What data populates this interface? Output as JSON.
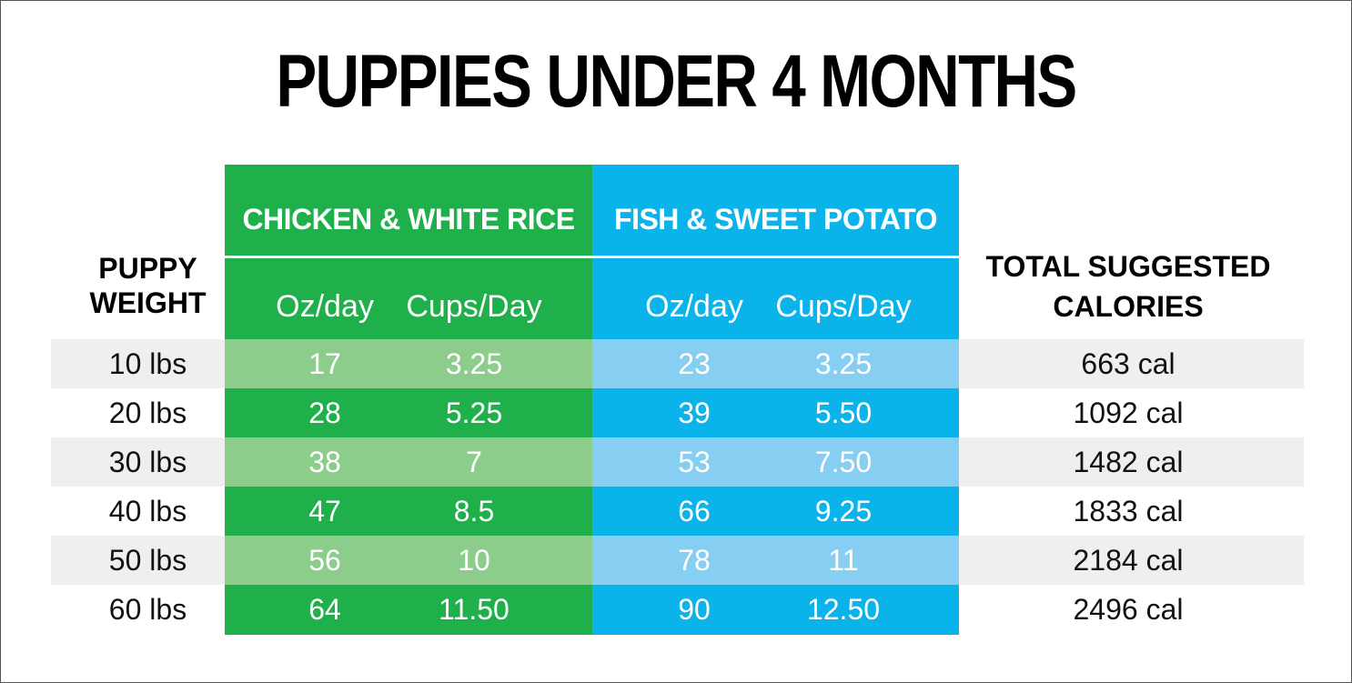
{
  "title": "PUPPIES UNDER 4 MONTHS",
  "headers": {
    "weight_line1": "PUPPY",
    "weight_line2": "WEIGHT",
    "recipe1": "CHICKEN & WHITE RICE",
    "recipe2": "FISH & SWEET POTATO",
    "calories_line1": "TOTAL SUGGESTED",
    "calories_line2": "CALORIES",
    "oz": "Oz/day",
    "cups": "Cups/Day"
  },
  "colors": {
    "green": "#1fb04b",
    "green_light": "#8dcd8b",
    "blue": "#0ab4ea",
    "blue_light": "#87cef3",
    "row_band": "#efefef"
  },
  "rows": [
    {
      "weight": "10 lbs",
      "c_oz": "17",
      "c_cups": "3.25",
      "f_oz": "23",
      "f_cups": "3.25",
      "cal": "663 cal"
    },
    {
      "weight": "20 lbs",
      "c_oz": "28",
      "c_cups": "5.25",
      "f_oz": "39",
      "f_cups": "5.50",
      "cal": "1092 cal"
    },
    {
      "weight": "30 lbs",
      "c_oz": "38",
      "c_cups": "7",
      "f_oz": "53",
      "f_cups": "7.50",
      "cal": "1482 cal"
    },
    {
      "weight": "40 lbs",
      "c_oz": "47",
      "c_cups": "8.5",
      "f_oz": "66",
      "f_cups": "9.25",
      "cal": "1833 cal"
    },
    {
      "weight": "50 lbs",
      "c_oz": "56",
      "c_cups": "10",
      "f_oz": "78",
      "f_cups": "11",
      "cal": "2184 cal"
    },
    {
      "weight": "60 lbs",
      "c_oz": "64",
      "c_cups": "11.50",
      "f_oz": "90",
      "f_cups": "12.50",
      "cal": "2496 cal"
    }
  ]
}
